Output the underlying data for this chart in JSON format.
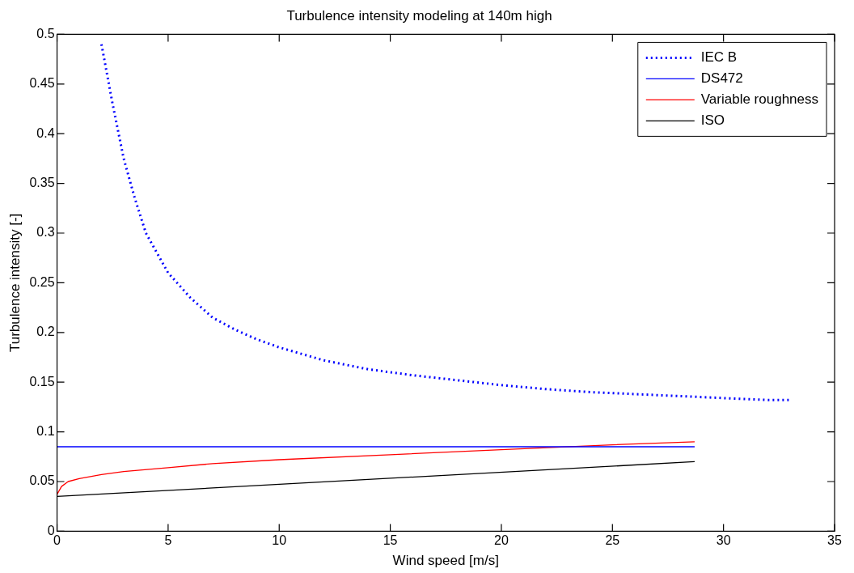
{
  "chart_data": {
    "type": "line",
    "title": "Turbulence intensity modeling at 140m high",
    "xlabel": "Wind speed [m/s]",
    "ylabel": "Turbulence intensity [-]",
    "xlim": [
      0,
      35
    ],
    "xticks": [
      0,
      5,
      10,
      15,
      20,
      25,
      30,
      35
    ],
    "ylim": [
      0,
      0.5
    ],
    "yticks": [
      0,
      0.05,
      0.1,
      0.15,
      0.2,
      0.25,
      0.3,
      0.35,
      0.4,
      0.45,
      0.5
    ],
    "grid": false,
    "legend": "top right",
    "marker": "none",
    "series": [
      {
        "name": "IEC B",
        "color": "#0000ff",
        "line_style": "dotted",
        "x": [
          2,
          2.5,
          3,
          3.5,
          4,
          5,
          6,
          7,
          8,
          9,
          10,
          12,
          14,
          16,
          18,
          20,
          22,
          24,
          26,
          28,
          30,
          32,
          33
        ],
        "values": [
          0.49,
          0.43,
          0.375,
          0.335,
          0.3,
          0.26,
          0.235,
          0.215,
          0.203,
          0.193,
          0.185,
          0.172,
          0.163,
          0.157,
          0.152,
          0.147,
          0.143,
          0.14,
          0.138,
          0.136,
          0.134,
          0.132,
          0.132
        ]
      },
      {
        "name": "DS472",
        "color": "#0000ff",
        "line_style": "solid",
        "x": [
          0,
          28.7
        ],
        "values": [
          0.085,
          0.085
        ]
      },
      {
        "name": "Variable roughness",
        "color": "#ff0000",
        "line_style": "solid",
        "x": [
          0,
          0.2,
          0.5,
          1,
          2,
          3,
          5,
          7,
          10,
          15,
          20,
          25,
          28.7
        ],
        "values": [
          0.037,
          0.045,
          0.05,
          0.053,
          0.057,
          0.06,
          0.064,
          0.068,
          0.072,
          0.077,
          0.082,
          0.087,
          0.09
        ]
      },
      {
        "name": "ISO",
        "color": "#000000",
        "line_style": "solid",
        "x": [
          0,
          28.7
        ],
        "values": [
          0.035,
          0.07
        ]
      }
    ]
  }
}
